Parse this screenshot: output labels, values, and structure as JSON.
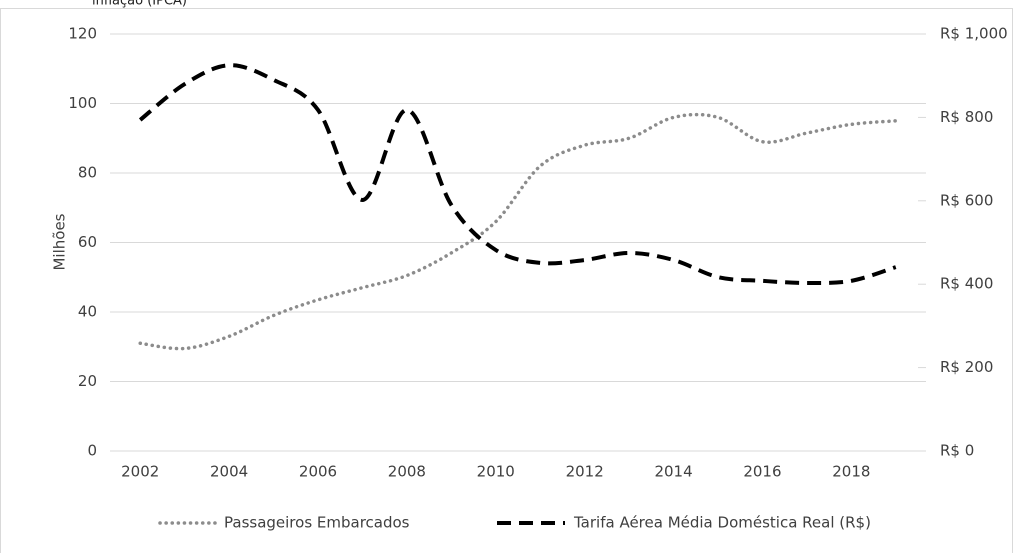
{
  "chart_data": {
    "type": "line",
    "title": "inflação (IPCA)",
    "ylabel": "Milhões",
    "categories": [
      "2002",
      null,
      "2004",
      null,
      "2006",
      null,
      "2008",
      null,
      "2010",
      null,
      "2012",
      null,
      "2014",
      null,
      "2016",
      null,
      "2018",
      null
    ],
    "series": [
      {
        "name": "Passageiros Embarcados",
        "color": "#8c8c8c",
        "style": "dotted",
        "values": [
          31,
          29.5,
          33,
          39,
          43.5,
          47,
          50.5,
          57,
          66,
          82,
          88,
          90,
          96,
          96,
          89,
          91.5,
          94,
          95
        ]
      },
      {
        "name": "Tarifa Aérea Média Doméstica Real (R$)",
        "color": "#000000",
        "style": "dashed",
        "axis": "y2",
        "values": [
          794,
          880,
          925,
          890,
          818,
          602,
          818,
          590,
          482,
          451,
          458,
          475,
          458,
          417,
          408,
          403,
          408,
          441
        ]
      }
    ],
    "ylim": [
      0,
      120
    ],
    "yticks": [
      0,
      20,
      40,
      60,
      80,
      100,
      120
    ],
    "y2lim": [
      0,
      1000
    ],
    "y2ticks": [
      {
        "value": 0,
        "label": "R$ 0"
      },
      {
        "value": 200,
        "label": "R$ 200"
      },
      {
        "value": 400,
        "label": "R$ 400"
      },
      {
        "value": 600,
        "label": "R$ 600"
      },
      {
        "value": 800,
        "label": "R$ 800"
      },
      {
        "value": 1000,
        "label": "R$ 1,000"
      }
    ],
    "grid": true,
    "legend": "bottom"
  }
}
